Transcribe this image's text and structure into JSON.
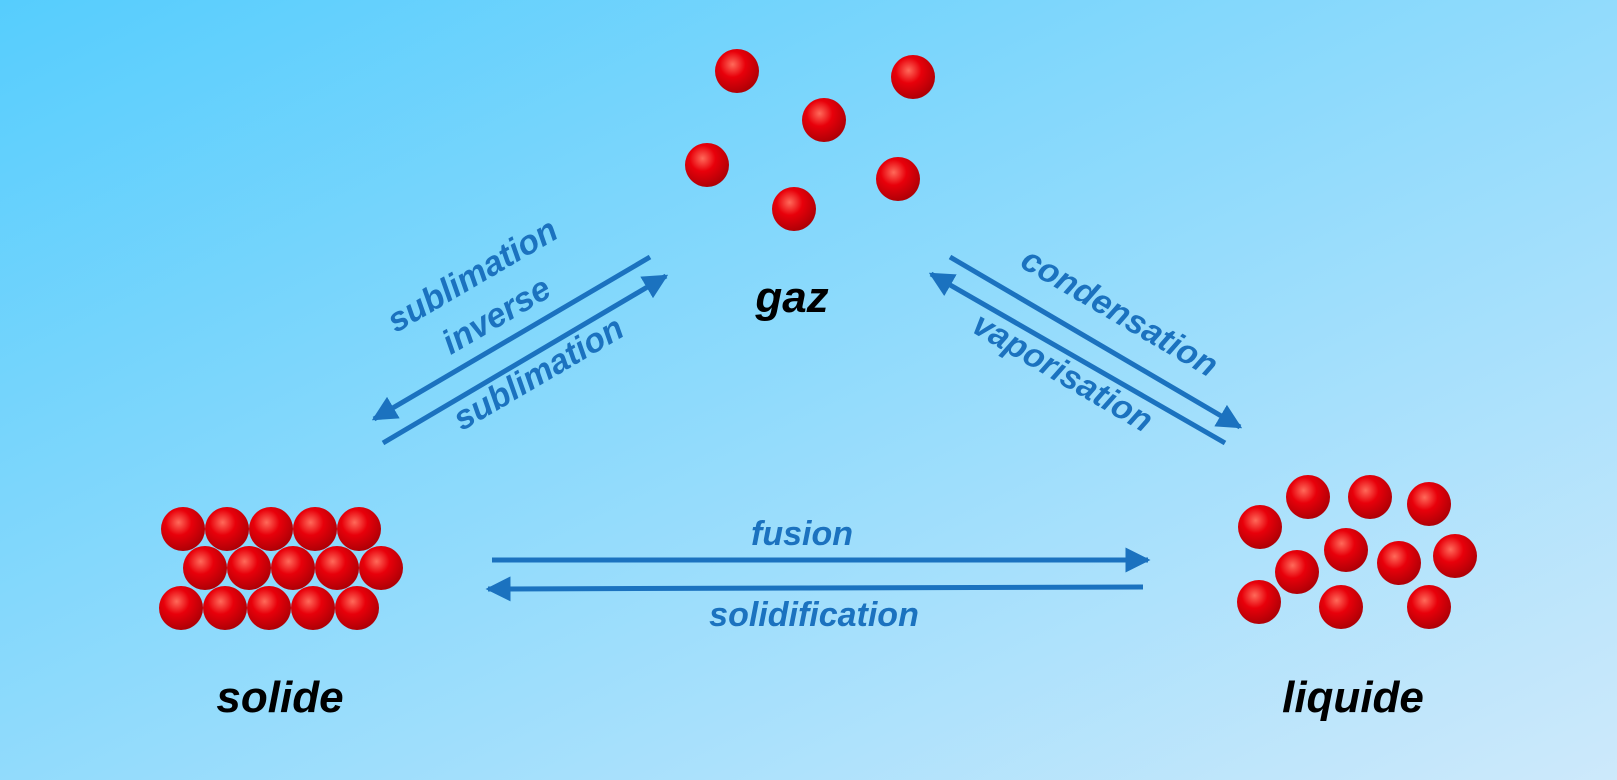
{
  "colors": {
    "background_start": "#56cdfd",
    "background_end": "#cde9fb",
    "particle": "#e8000a",
    "particle_highlight": "#ff6a5a",
    "particle_shadow": "#b00006",
    "arrow": "#1b72bf",
    "state_text": "#000000"
  },
  "states": {
    "gas": {
      "label": "gaz"
    },
    "solid": {
      "label": "solide"
    },
    "liquid": {
      "label": "liquide"
    }
  },
  "transitions": {
    "fusion": {
      "label": "fusion"
    },
    "solidification": {
      "label": "solidification"
    },
    "condensation": {
      "label": "condensation"
    },
    "vaporisation": {
      "label": "vaporisation"
    },
    "sublimation": {
      "label": "sublimation"
    },
    "inverse_sublimation": {
      "line1": "sublimation",
      "line2": "inverse"
    }
  }
}
